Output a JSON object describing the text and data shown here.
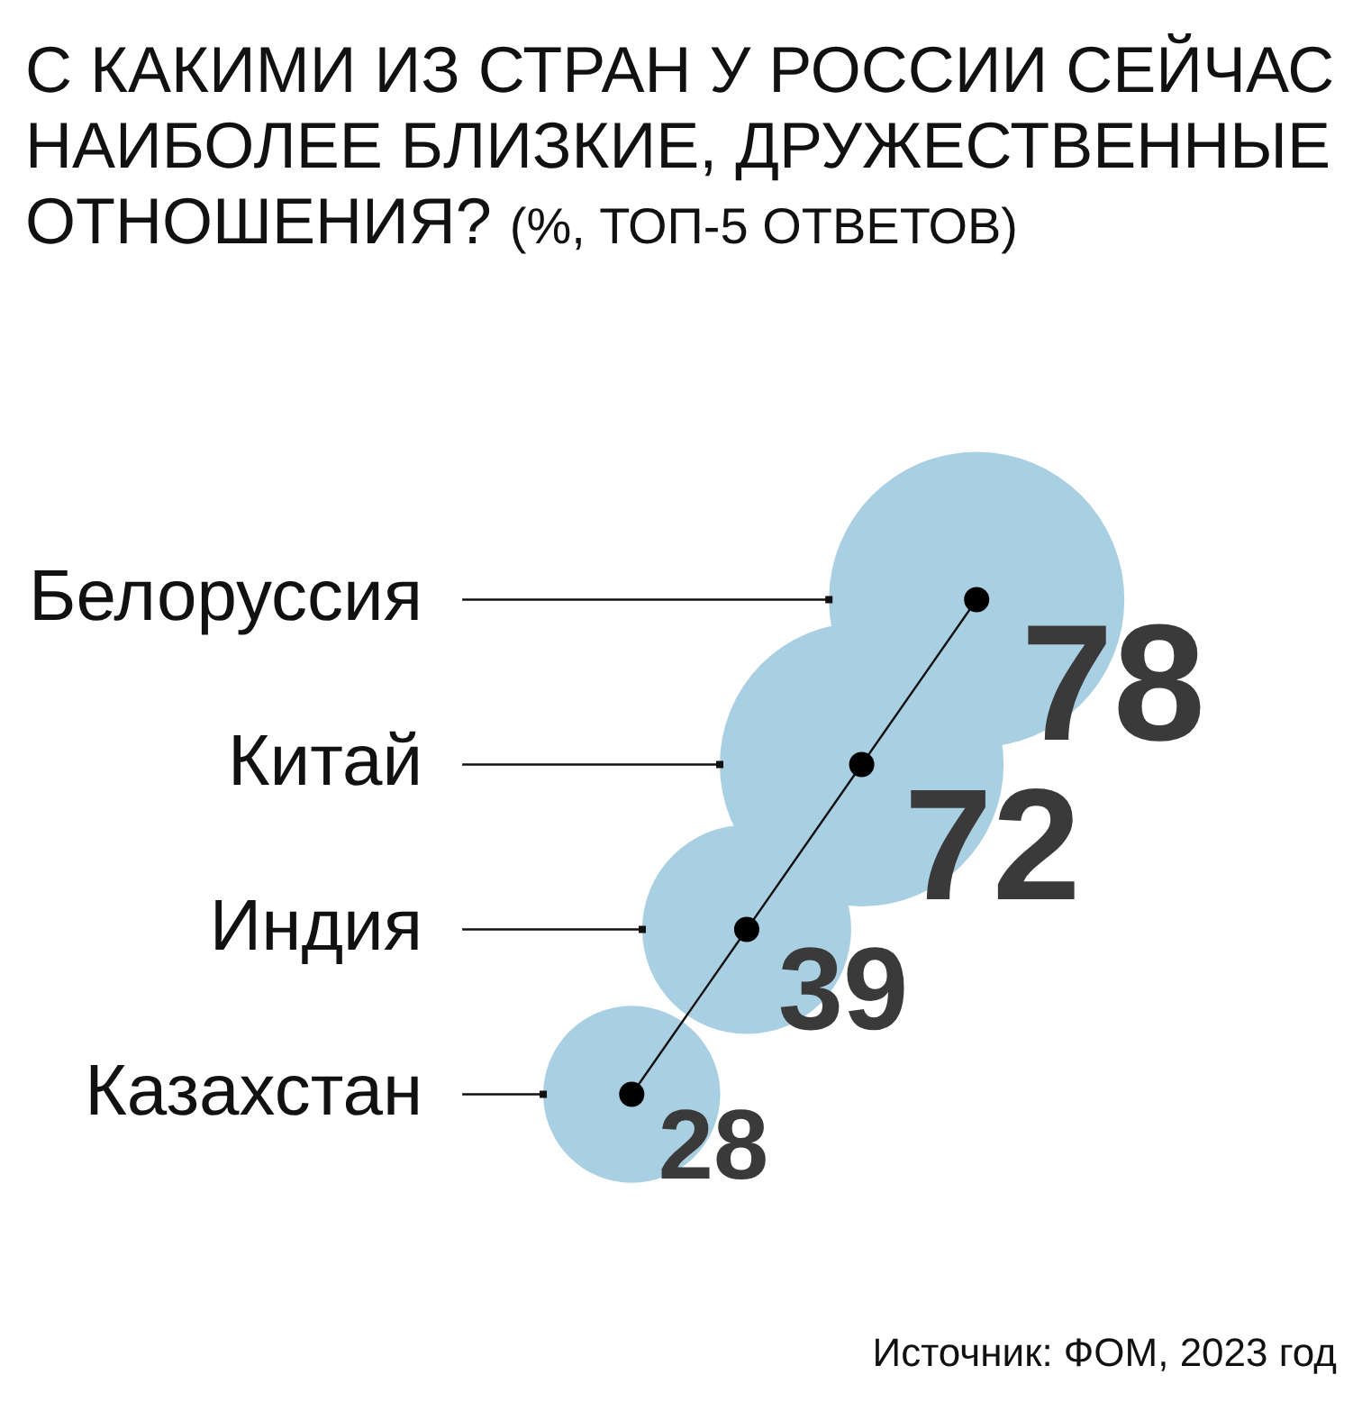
{
  "chart_data": {
    "type": "other",
    "title": "С КАКИМИ ИЗ СТРАН У РОССИИ СЕЙЧАС НАИБОЛЕЕ БЛИЗКИЕ, ДРУЖЕСТВЕННЫЕ ОТНОШЕНИЯ?",
    "subtitle": "(%, ТОП-5 ОТВЕТОВ)",
    "categories": [
      "Белоруссия",
      "Китай",
      "Индия",
      "Казахстан"
    ],
    "values": [
      78,
      72,
      39,
      28
    ],
    "color": "#a9cfe3",
    "data_labels": true,
    "annotations": [
      "Источник: ФОМ, 2023 год"
    ]
  }
}
